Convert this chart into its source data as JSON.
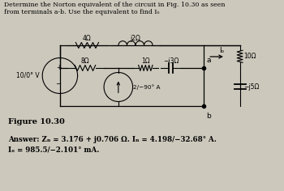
{
  "title_line1": "Determine the Norton equivalent of the circuit in Fig. 10.30 as seen",
  "title_line2": "from terminals a-b. Use the equivalent to find Iₒ",
  "figure_label": "Figure 10.30",
  "answer_line1": "Answer: Zₙ = 3.176 + j0.706 Ω. Iₙ = 4.198/−32.68° A.",
  "answer_line2": "Iₒ = 985.5/−2.101° mA.",
  "bg_color": "#ccc8bc",
  "text_color": "#1a1a1a",
  "circuit": {
    "r4": "4Ω",
    "j2": "j2Ω",
    "r8": "8Ω",
    "r1": "1Ω",
    "mj3": "−j3Ω",
    "vs": "10/0° V",
    "cs": "2/−90° A",
    "r10": "10Ω",
    "mj5": "−j5Ω",
    "io": "Iₒ",
    "na": "a",
    "nb": "b"
  }
}
